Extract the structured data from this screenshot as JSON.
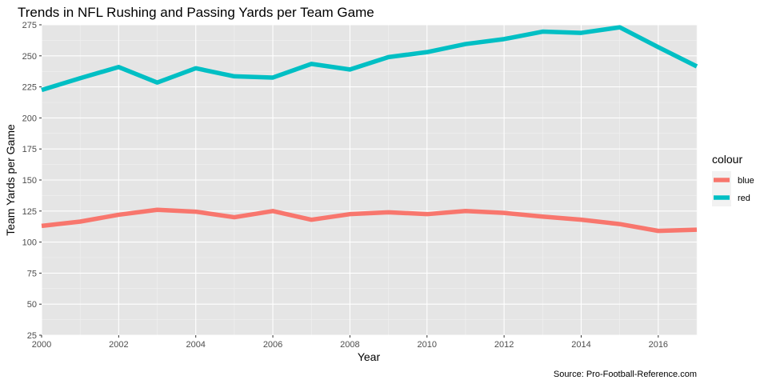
{
  "chart_data": {
    "type": "line",
    "title": "Trends in NFL Rushing and Passing Yards per Team Game",
    "xlabel": "Year",
    "ylabel": "Team Yards per Game",
    "caption": "Source: Pro-Football-Reference.com",
    "xlim": [
      2000,
      2017
    ],
    "ylim": [
      25,
      275
    ],
    "x_ticks": [
      2000,
      2002,
      2004,
      2006,
      2008,
      2010,
      2012,
      2014,
      2016
    ],
    "y_ticks": [
      25,
      50,
      75,
      100,
      125,
      150,
      175,
      200,
      225,
      250,
      275
    ],
    "grid": true,
    "background": "#e5e5e5",
    "legend": {
      "title": "colour",
      "position": "right"
    },
    "x": [
      2000,
      2001,
      2002,
      2003,
      2004,
      2005,
      2006,
      2007,
      2008,
      2009,
      2010,
      2011,
      2012,
      2013,
      2014,
      2015,
      2016,
      2017
    ],
    "series": [
      {
        "name": "blue",
        "color": "#f8766d",
        "values": [
          113,
          116.5,
          122,
          126,
          124.5,
          120,
          125,
          118,
          122.5,
          124,
          122.5,
          125,
          123.5,
          120.5,
          118,
          114.5,
          109,
          110
        ]
      },
      {
        "name": "red",
        "color": "#00bfc4",
        "values": [
          222.5,
          232,
          241,
          228.5,
          240,
          233.5,
          232.5,
          243.5,
          239,
          249,
          253,
          259.5,
          263.5,
          269.5,
          268.5,
          273,
          257,
          241.5
        ]
      }
    ]
  }
}
